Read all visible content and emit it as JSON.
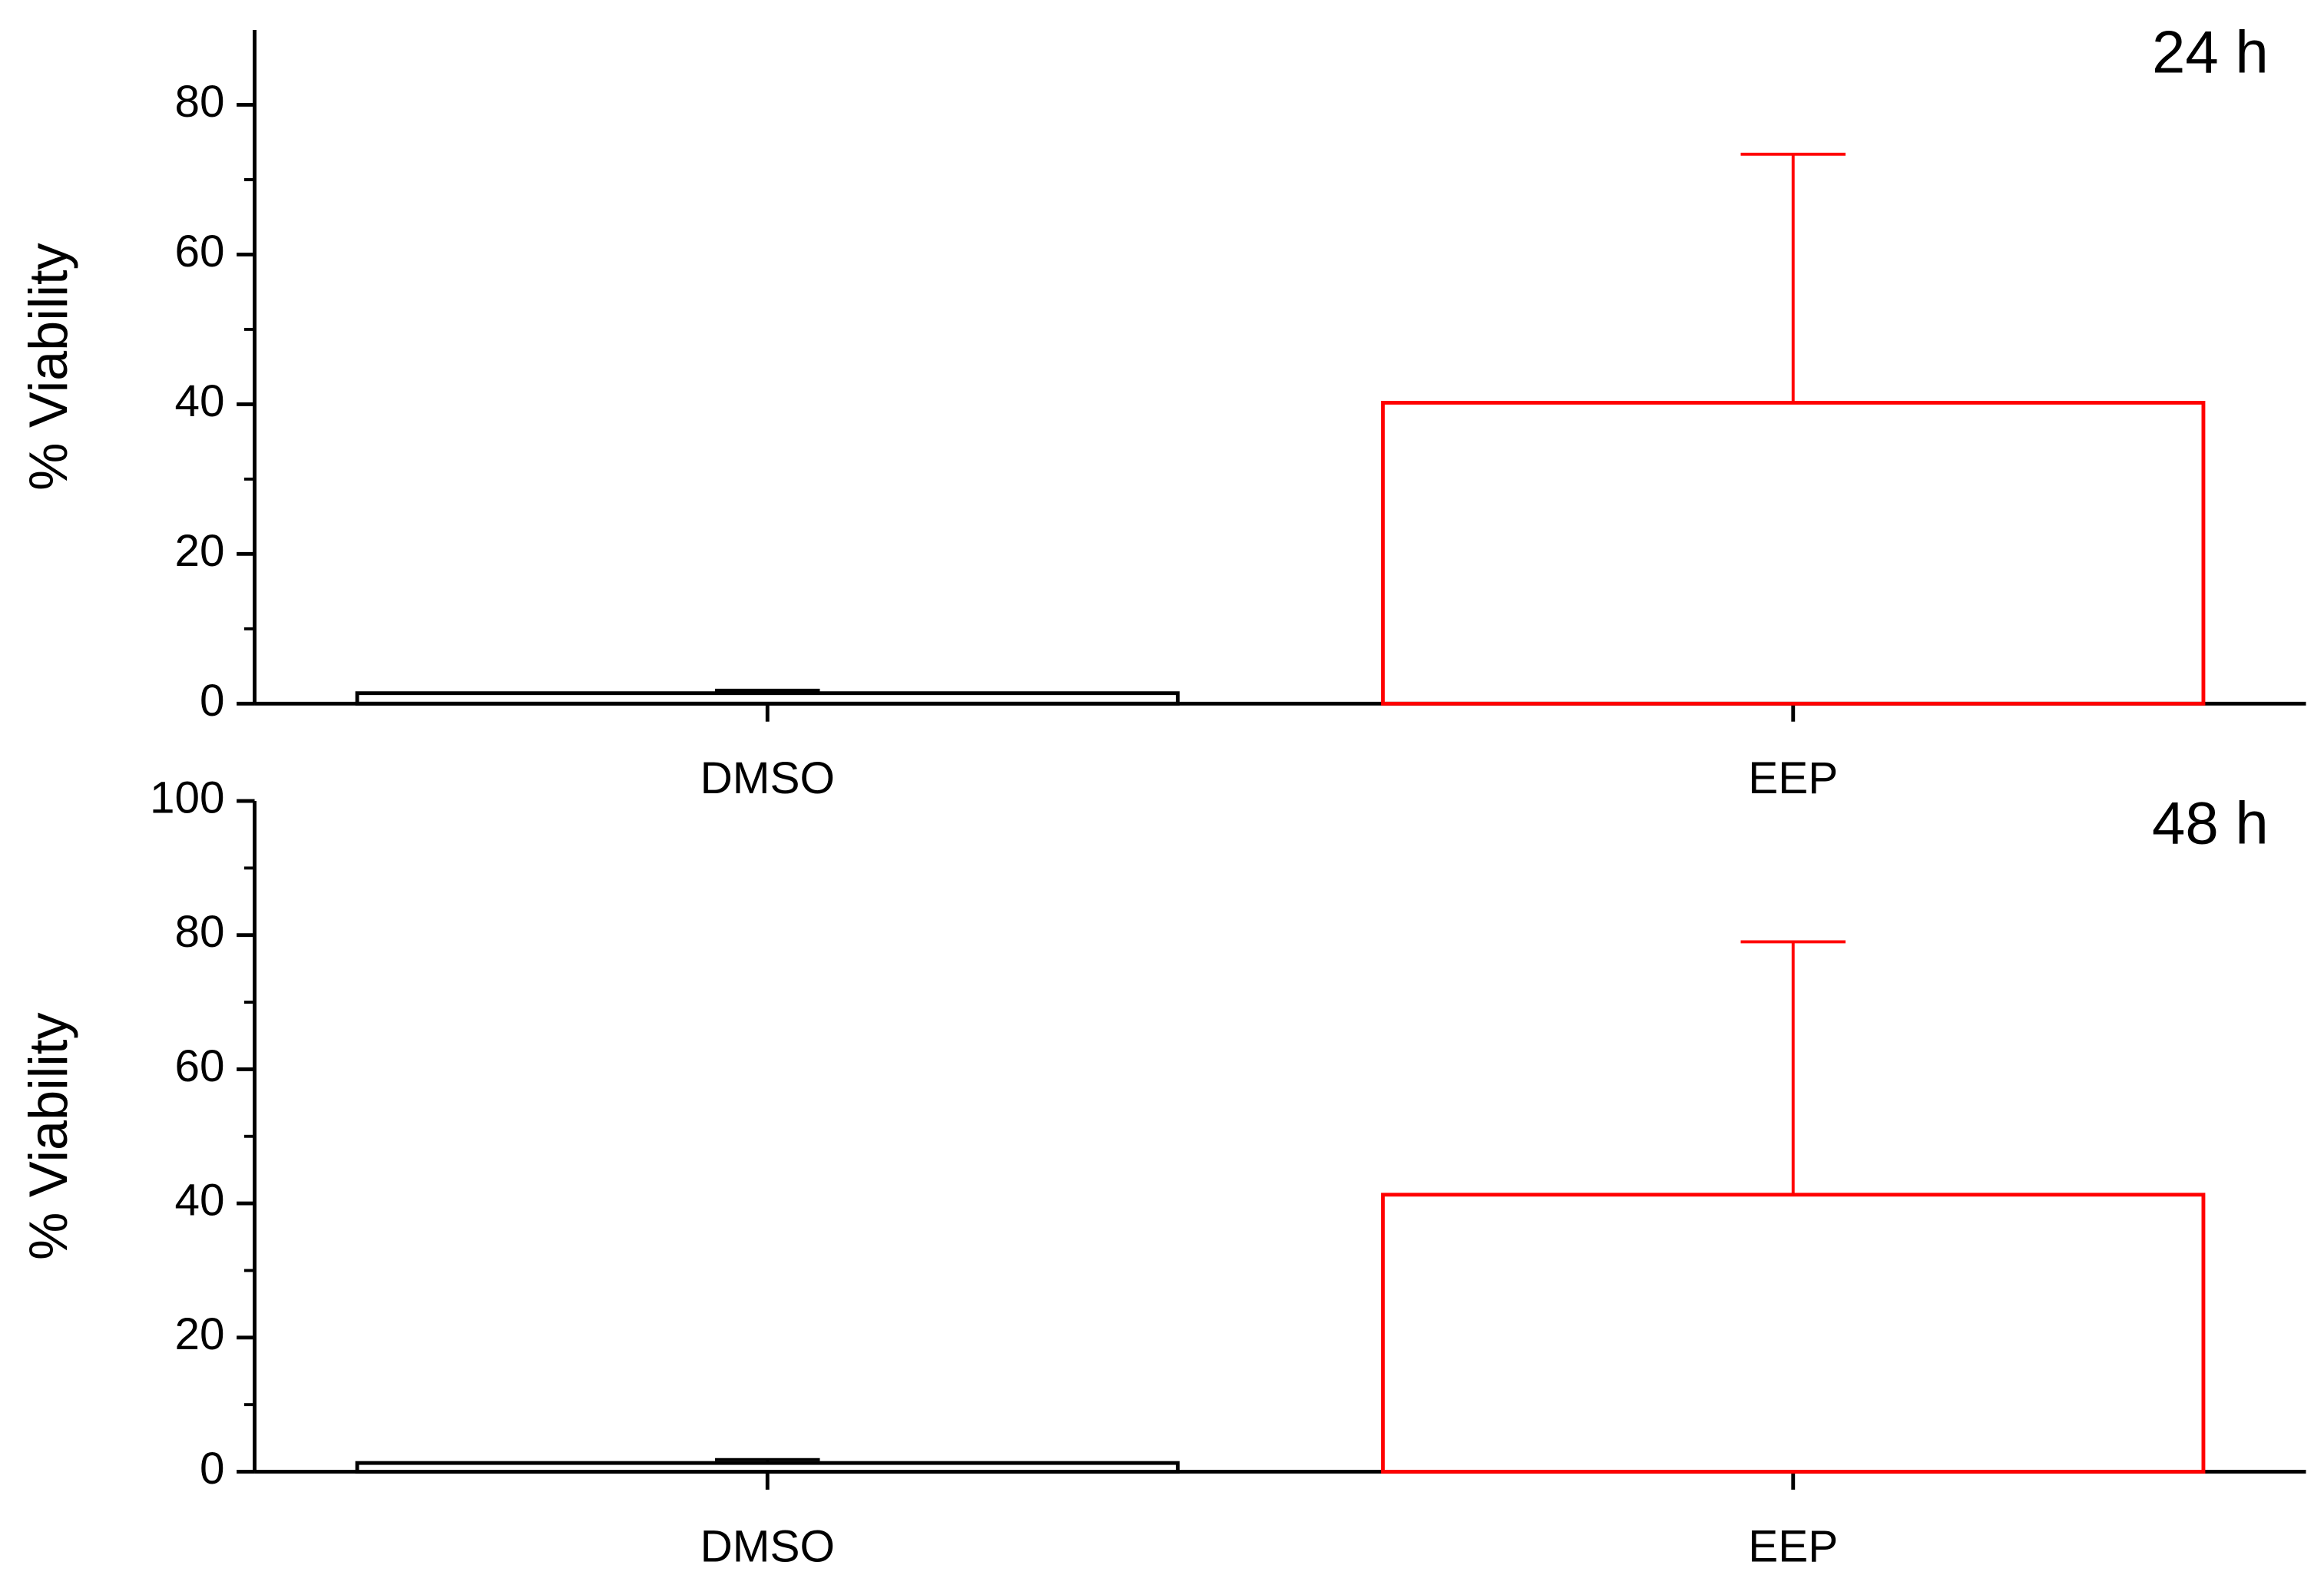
{
  "chart_data": [
    {
      "type": "bar",
      "annotation": "24 h",
      "y_label": "% Viability",
      "categories": [
        "DMSO",
        "EEP"
      ],
      "values": [
        1.4,
        40.2
      ],
      "errors": [
        0.4,
        33.2
      ],
      "colors": [
        "#000000",
        "#ff0000"
      ],
      "ylim": [
        0,
        90
      ],
      "yticks": [
        0,
        20,
        40,
        60,
        80
      ]
    },
    {
      "type": "bar",
      "annotation": "48 h",
      "y_label": "% Viability",
      "categories": [
        "DMSO",
        "EEP"
      ],
      "values": [
        1.3,
        41.3
      ],
      "errors": [
        0.5,
        37.7
      ],
      "colors": [
        "#000000",
        "#ff0000"
      ],
      "ylim": [
        0,
        100
      ],
      "yticks": [
        0,
        20,
        40,
        60,
        80,
        100
      ]
    }
  ]
}
